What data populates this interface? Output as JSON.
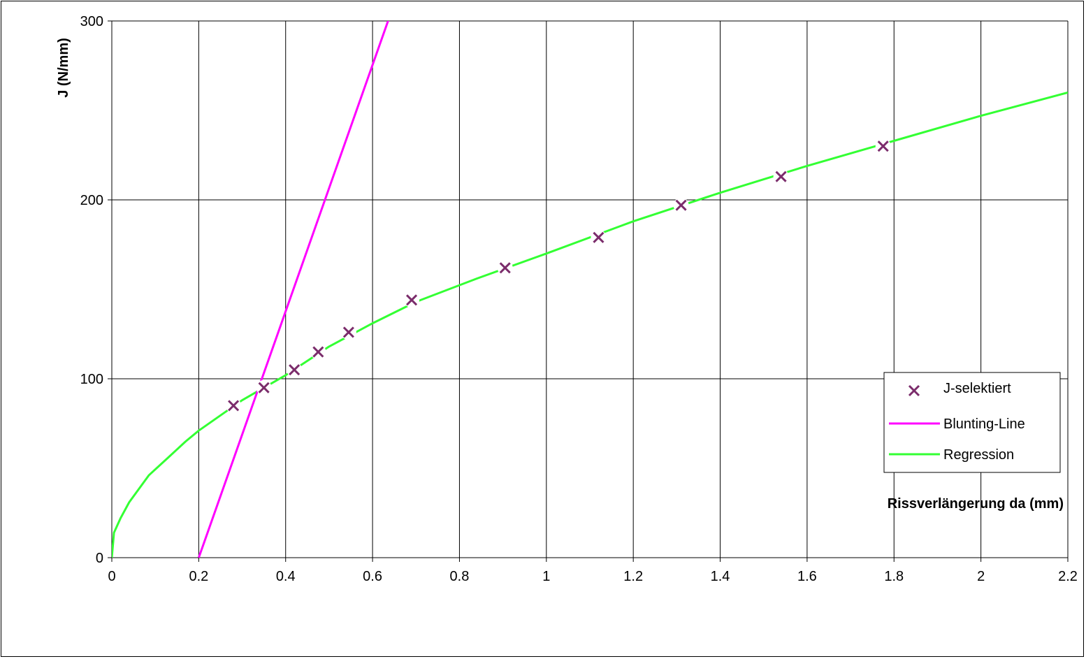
{
  "chart_data": {
    "type": "scatter",
    "title": "",
    "xlabel": "Rissverlängerung da (mm)",
    "ylabel": "J (N/mm)",
    "xlim": [
      0,
      2.2
    ],
    "ylim": [
      0,
      300
    ],
    "x_ticks": [
      0,
      0.2,
      0.4,
      0.6,
      0.8,
      1,
      1.2,
      1.4,
      1.6,
      1.8,
      2,
      2.2
    ],
    "x_tick_labels": [
      "0",
      "0.2",
      "0.4",
      "0.6",
      "0.8",
      "1",
      "1.2",
      "1.4",
      "1.6",
      "1.8",
      "2",
      "2.2"
    ],
    "y_ticks": [
      0,
      100,
      200,
      300
    ],
    "y_tick_labels": [
      "0",
      "100",
      "200",
      "300"
    ],
    "grid": true,
    "legend_position": "right",
    "series": [
      {
        "name": "J-selektiert",
        "kind": "scatter",
        "marker": "x",
        "color": "#7b2c6b",
        "points": [
          {
            "x": 0.28,
            "y": 85
          },
          {
            "x": 0.35,
            "y": 95
          },
          {
            "x": 0.42,
            "y": 105
          },
          {
            "x": 0.475,
            "y": 115
          },
          {
            "x": 0.545,
            "y": 126
          },
          {
            "x": 0.69,
            "y": 144
          },
          {
            "x": 0.905,
            "y": 162
          },
          {
            "x": 1.12,
            "y": 179
          },
          {
            "x": 1.31,
            "y": 197
          },
          {
            "x": 1.54,
            "y": 213
          },
          {
            "x": 1.775,
            "y": 230
          }
        ]
      },
      {
        "name": "Blunting-Line",
        "kind": "line",
        "color": "#ff00ff",
        "points": [
          {
            "x": 0.2,
            "y": 0
          },
          {
            "x": 0.64,
            "y": 303
          }
        ]
      },
      {
        "name": "Regression",
        "kind": "line",
        "color": "#33ff33",
        "points": [
          {
            "x": 0,
            "y": 0
          },
          {
            "x": 0.005,
            "y": 14
          },
          {
            "x": 0.02,
            "y": 22
          },
          {
            "x": 0.04,
            "y": 31
          },
          {
            "x": 0.085,
            "y": 46
          },
          {
            "x": 0.13,
            "y": 56
          },
          {
            "x": 0.17,
            "y": 65
          },
          {
            "x": 0.2,
            "y": 71
          },
          {
            "x": 0.3,
            "y": 88
          },
          {
            "x": 0.4,
            "y": 102
          },
          {
            "x": 0.5,
            "y": 118
          },
          {
            "x": 0.6,
            "y": 131
          },
          {
            "x": 0.7,
            "y": 143
          },
          {
            "x": 0.84,
            "y": 156
          },
          {
            "x": 1.0,
            "y": 170
          },
          {
            "x": 1.2,
            "y": 188
          },
          {
            "x": 1.4,
            "y": 204
          },
          {
            "x": 1.6,
            "y": 219
          },
          {
            "x": 1.8,
            "y": 233
          },
          {
            "x": 2.0,
            "y": 247
          },
          {
            "x": 2.2,
            "y": 260
          }
        ]
      }
    ]
  }
}
